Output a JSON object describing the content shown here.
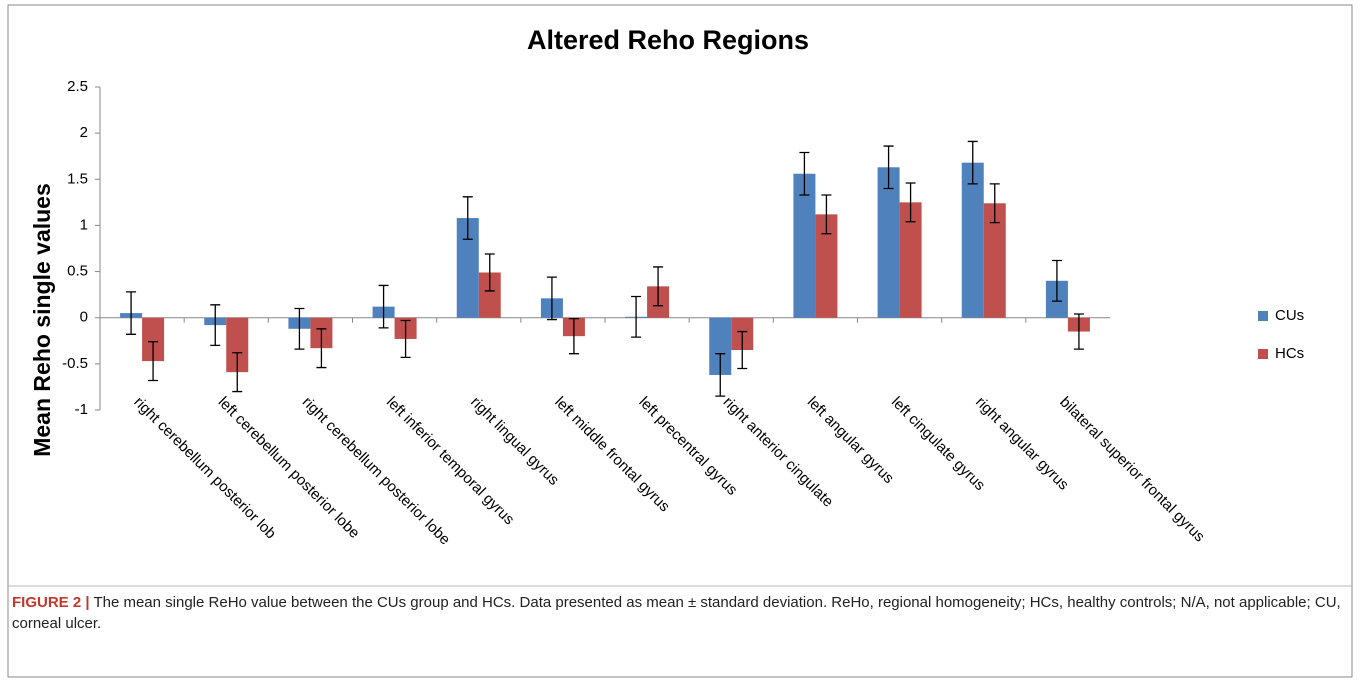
{
  "chart_data": {
    "type": "bar",
    "title": "Altered Reho Regions",
    "y_label": "Mean Reho  single values",
    "categories": [
      "right cerebellum posterior lob",
      "left cerebellum posterior lobe",
      "right cerebellum posterior lobe",
      "left inferior temporal gyrus",
      "right lingual gyrus",
      "left middle frontal gyrus",
      "left precentral gyrus",
      "right anterior cingulate",
      "left angular gyrus",
      "left cingulate gyrus",
      "right angular gyrus",
      "bilateral superior frontal gyrus"
    ],
    "series": [
      {
        "name": "CUs",
        "color": "#4f81bd",
        "values": [
          0.05,
          -0.08,
          -0.12,
          0.12,
          1.08,
          0.21,
          0.01,
          -0.62,
          1.56,
          1.63,
          1.68,
          0.4
        ],
        "errors": [
          0.23,
          0.22,
          0.22,
          0.23,
          0.23,
          0.23,
          0.22,
          0.23,
          0.23,
          0.23,
          0.23,
          0.22
        ]
      },
      {
        "name": "HCs",
        "color": "#c0504d",
        "values": [
          -0.47,
          -0.59,
          -0.33,
          -0.23,
          0.49,
          -0.2,
          0.34,
          -0.35,
          1.12,
          1.25,
          1.24,
          -0.15
        ],
        "errors": [
          0.21,
          0.21,
          0.21,
          0.2,
          0.2,
          0.19,
          0.21,
          0.2,
          0.21,
          0.21,
          0.21,
          0.19
        ]
      }
    ],
    "ylim": [
      -1,
      2.5
    ],
    "yticks": [
      -1,
      -0.5,
      0,
      0.5,
      1,
      1.5,
      2,
      2.5
    ],
    "legend": "right"
  },
  "caption": {
    "label": "FIGURE 2 |",
    "text": "The mean single ReHo value between the CUs group and HCs. Data presented as mean ± standard deviation. ReHo, regional homogeneity; HCs, healthy controls; N/A, not applicable; CU, corneal ulcer."
  }
}
